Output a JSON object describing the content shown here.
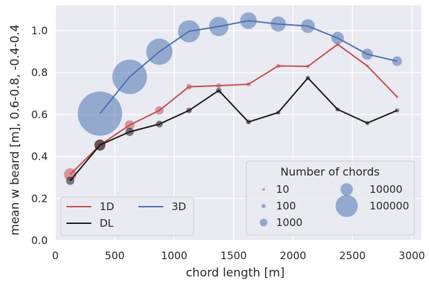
{
  "chart_data": {
    "type": "scatter",
    "xlabel": "chord length [m]",
    "ylabel": "mean w beard [m], 0.6-0.8, -0.4-0.4",
    "xlim": [
      0,
      3080
    ],
    "ylim": [
      0.0,
      1.12
    ],
    "xticks": [
      0,
      500,
      1000,
      1500,
      2000,
      2500,
      3000
    ],
    "yticks": [
      0.0,
      0.2,
      0.4,
      0.6,
      0.8,
      1.0
    ],
    "xtick_labels": [
      "0",
      "500",
      "1000",
      "1500",
      "2000",
      "2500",
      "3000"
    ],
    "ytick_labels": [
      "0.0",
      "0.2",
      "0.4",
      "0.6",
      "0.8",
      "1.0"
    ],
    "grid": true,
    "background": "#eaeaf2",
    "series": [
      {
        "name": "1D",
        "color": "#c44e52",
        "x": [
          125,
          375,
          625,
          875,
          1125,
          1375,
          1625,
          1875,
          2125,
          2375,
          2625,
          2875
        ],
        "values": [
          0.315,
          0.455,
          0.55,
          0.62,
          0.733,
          0.738,
          0.745,
          0.832,
          0.83,
          0.935,
          0.832,
          0.685
        ],
        "marker_sizes": [
          9,
          8,
          7,
          6,
          4,
          3.5,
          3,
          3,
          2.5,
          2.5,
          2,
          2
        ]
      },
      {
        "name": "DL",
        "color": "#1a1a1a",
        "x": [
          125,
          375,
          625,
          875,
          1125,
          1375,
          1625,
          1875,
          2125,
          2375,
          2625,
          2875
        ],
        "values": [
          0.285,
          0.455,
          0.518,
          0.555,
          0.62,
          0.715,
          0.565,
          0.61,
          0.775,
          0.625,
          0.56,
          0.62
        ],
        "marker_sizes": [
          6,
          8,
          6,
          5,
          4,
          4,
          3.5,
          3,
          3,
          3,
          3,
          3
        ]
      },
      {
        "name": "3D",
        "color": "#4c72b0",
        "x": [
          375,
          625,
          875,
          1125,
          1375,
          1625,
          1875,
          2125,
          2375,
          2625,
          2875
        ],
        "values": [
          0.605,
          0.78,
          0.9,
          0.997,
          1.02,
          1.048,
          1.032,
          1.022,
          0.965,
          0.888,
          0.855
        ],
        "marker_sizes": [
          32,
          25,
          19,
          16,
          14,
          12,
          11,
          10,
          9,
          8,
          7
        ]
      }
    ],
    "legend_lines": {
      "placement": "lower-left",
      "entries": [
        {
          "label": "1D",
          "color": "#c44e52"
        },
        {
          "label": "3D",
          "color": "#4c72b0"
        },
        {
          "label": "DL",
          "color": "#1a1a1a"
        }
      ]
    },
    "legend_sizes": {
      "placement": "lower-right",
      "title": "Number of chords",
      "color": "#4c72b0",
      "entries": [
        {
          "label": "10",
          "size": 2
        },
        {
          "label": "100",
          "size": 3
        },
        {
          "label": "1000",
          "size": 5.5
        },
        {
          "label": "10000",
          "size": 9
        },
        {
          "label": "100000",
          "size": 16
        }
      ]
    }
  }
}
